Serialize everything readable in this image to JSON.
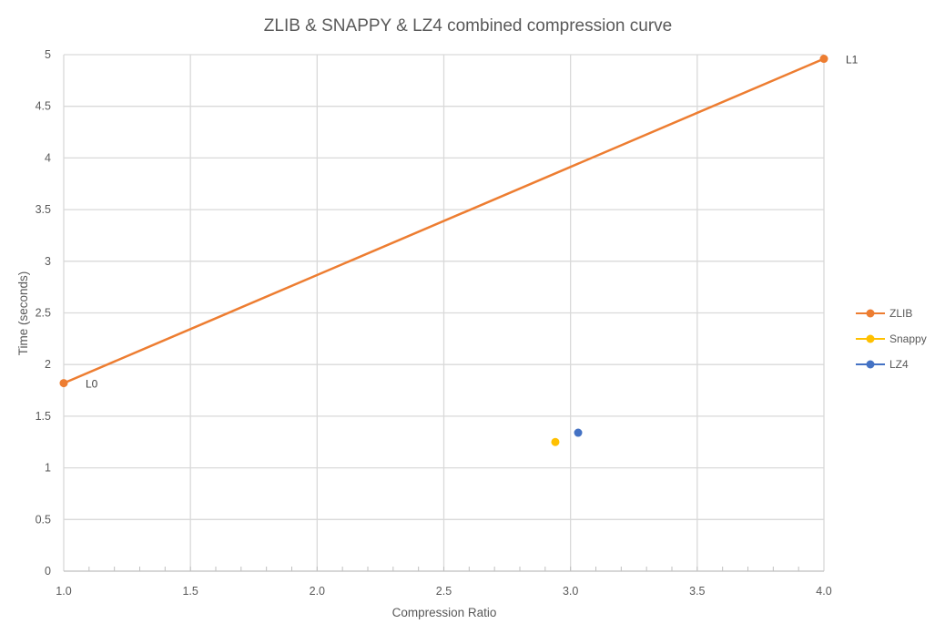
{
  "chart_data": {
    "type": "scatter",
    "title": "ZLIB & SNAPPY & LZ4 combined compression curve",
    "xlabel": "Compression Ratio",
    "ylabel": "Time (seconds)",
    "xlim": [
      1.0,
      4.0
    ],
    "ylim": [
      0,
      5
    ],
    "x_ticks": [
      "1.0",
      "1.5",
      "2.0",
      "2.5",
      "3.0",
      "3.5",
      "4.0"
    ],
    "y_ticks": [
      "0",
      "0.5",
      "1",
      "1.5",
      "2",
      "2.5",
      "3",
      "3.5",
      "4",
      "4.5",
      "5"
    ],
    "grid": true,
    "legend_position": "right",
    "series": [
      {
        "name": "ZLIB",
        "color": "#ED7D31",
        "line": true,
        "points": [
          {
            "x": 1.0,
            "y": 1.82,
            "label": "L0"
          },
          {
            "x": 4.0,
            "y": 4.96,
            "label": "L1"
          }
        ]
      },
      {
        "name": "Snappy",
        "color": "#FFC000",
        "line": false,
        "points": [
          {
            "x": 2.94,
            "y": 1.25
          }
        ]
      },
      {
        "name": "LZ4",
        "color": "#4472C4",
        "line": false,
        "points": [
          {
            "x": 3.03,
            "y": 1.34
          }
        ]
      }
    ]
  }
}
